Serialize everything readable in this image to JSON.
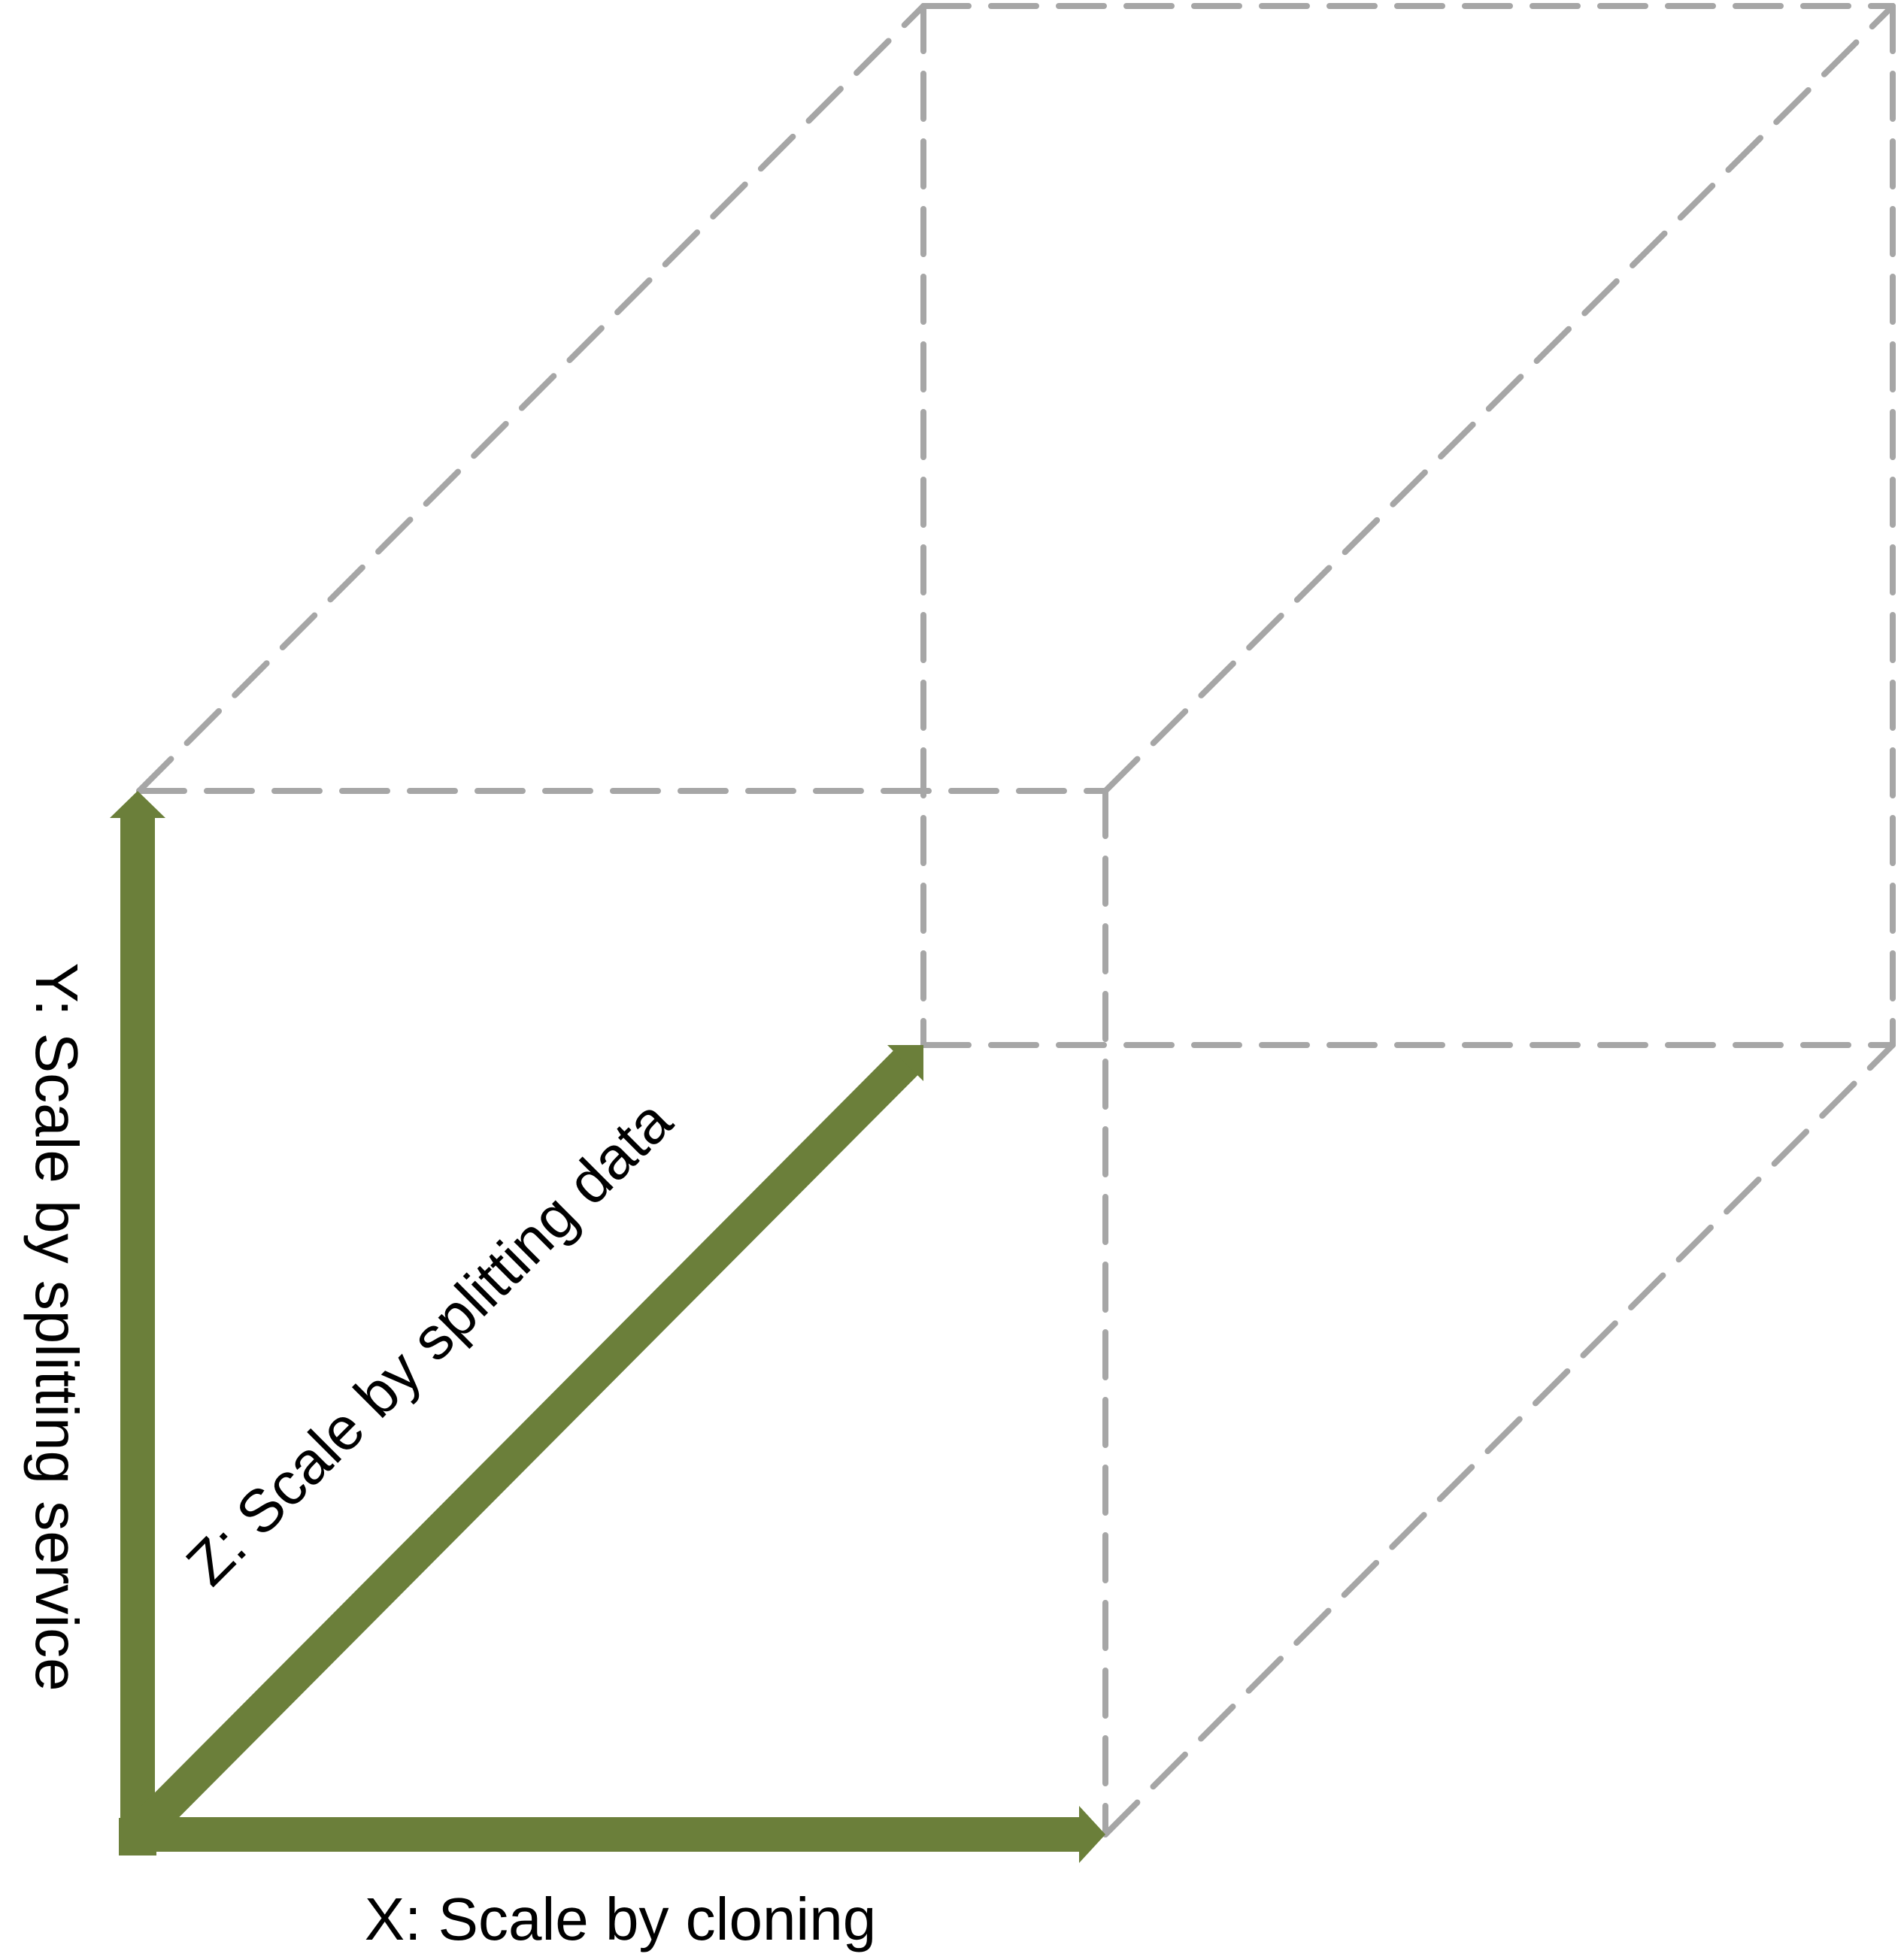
{
  "diagram": {
    "type": "scale-cube",
    "axes": {
      "x": {
        "label": "X: Scale by cloning"
      },
      "y": {
        "label": "Y: Scale by splitting service"
      },
      "z": {
        "label": "Z: Scale by splitting data"
      }
    },
    "colors": {
      "axis": "#6b7f3a",
      "edges": "#a6a6a6",
      "text": "#000000",
      "background": "#ffffff"
    }
  }
}
